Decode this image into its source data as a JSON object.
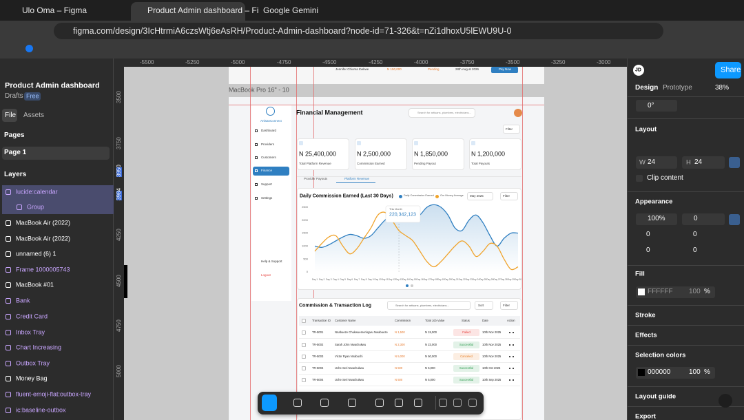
{
  "browser": {
    "tabs": [
      "Ulo Oma – Figma",
      "Product Admin dashboard – Fi",
      "Google Gemini"
    ],
    "url": "figma.com/design/3IcHtrmiA6czsWtj6eAsRH/Product-Admin-dashboard?node-id=71-326&t=nZi1dhoxU5lEWU9U-0"
  },
  "figma": {
    "file_name": "Product Admin dashboard",
    "drafts": "Drafts",
    "plan": "Free",
    "file_tab": "File",
    "assets_tab": "Assets",
    "pages_label": "Pages",
    "page": "Page 1",
    "layers_label": "Layers",
    "layers": [
      {
        "name": "lucide:calendar",
        "color": "#c9a6ff"
      },
      {
        "name": "Group",
        "color": "#c9a6ff"
      },
      {
        "name": "MacBook Air (2022)",
        "color": "#ffffff"
      },
      {
        "name": "MacBook Air (2022)",
        "color": "#ffffff"
      },
      {
        "name": "unnamed (6) 1",
        "color": "#ffffff"
      },
      {
        "name": "Frame 1000005743",
        "color": "#c9a6ff"
      },
      {
        "name": "MacBook #01",
        "color": "#ffffff"
      },
      {
        "name": "Bank",
        "color": "#c9a6ff"
      },
      {
        "name": "Credit Card",
        "color": "#c9a6ff"
      },
      {
        "name": "Inbox Tray",
        "color": "#c9a6ff"
      },
      {
        "name": "Chart Increasing",
        "color": "#c9a6ff"
      },
      {
        "name": "Outbox Tray",
        "color": "#c9a6ff"
      },
      {
        "name": "Money Bag",
        "color": "#ffffff"
      },
      {
        "name": "fluent-emoji-flat:outbox-tray",
        "color": "#c9a6ff"
      },
      {
        "name": "ic:baseline-outbox",
        "color": "#c9a6ff"
      }
    ],
    "ruler_x": [
      -5500,
      -5250,
      -5000,
      -4750,
      -4500,
      -4250,
      -4000,
      -3750,
      -3500,
      -3250,
      -3000
    ],
    "ruler_y": [
      3500,
      3750,
      3950,
      3984,
      4250,
      4500,
      4750,
      5000
    ],
    "frame_label": "MacBook Pro 16\" - 10",
    "right": {
      "avatar": "JD",
      "share": "Share",
      "design": "Design",
      "prototype": "Prototype",
      "zoom": "38%",
      "rotation": "0°",
      "layout": "Layout",
      "w_label": "W",
      "w": "24",
      "h_label": "H",
      "h": "24",
      "clip": "Clip content",
      "appearance": "Appearance",
      "opacity": "100%",
      "radius": "0",
      "corners": [
        "0",
        "0",
        "0",
        "0"
      ],
      "fill": "Fill",
      "fill_hex": "FFFFFF",
      "fill_opacity": "100",
      "fill_pct": "%",
      "stroke": "Stroke",
      "effects": "Effects",
      "selection": "Selection colors",
      "sel_hex": "000000",
      "sel_opacity": "100",
      "sel_pct": "%",
      "layout_guide": "Layout guide",
      "export": "Export"
    }
  },
  "dashboard": {
    "prev_row": [
      "Jennifer Chioma Ibekwe",
      "N 150,000",
      "Pending",
      "28th Aug at 2026",
      "Pay Now"
    ],
    "brand": "ArtisanConnect",
    "nav": [
      "Dashboard",
      "Providers",
      "Customers",
      "Finance",
      "Support",
      "Settings"
    ],
    "help": "Help & Support",
    "logout": "Logout",
    "title": "Financial Management",
    "search": "Search for artisans, plumbers, electricians...",
    "filter": "Filter",
    "cards": [
      {
        "value": "N 25,400,000",
        "label": "Total Platform Revenue"
      },
      {
        "value": "N 2,500,000",
        "label": "Commission Earned"
      },
      {
        "value": "N 1,850,000",
        "label": "Pending Payout"
      },
      {
        "value": "N 1,200,000",
        "label": "Total Payouts"
      }
    ],
    "tabs": [
      "Provider Payouts",
      "Platform Revenue"
    ],
    "chart": {
      "type": "line",
      "title": "Daily Commission Earned (Last 30 Days)",
      "month": "May 2025",
      "filter": "Filter",
      "tooltip_label": "This Month",
      "tooltip_value": "220,342,123",
      "categories": [
        "Day 1",
        "Day 2",
        "Day 3",
        "Day 4",
        "Day 5",
        "Day 6",
        "Day 7",
        "Day 8",
        "Day 9",
        "Day 10",
        "Day 11",
        "Day 12",
        "Day 13",
        "Day 14",
        "Day 15",
        "Day 16",
        "Day 17",
        "Day 18",
        "Day 19",
        "Day 20",
        "Day 21",
        "Day 22",
        "Day 23",
        "Day 24",
        "Day 25",
        "Day 26",
        "Day 27",
        "Day 28",
        "Day 29",
        "Day 30"
      ],
      "ylim": [
        0,
        2500
      ],
      "yticks": [
        0,
        500,
        1000,
        1500,
        2000,
        2500
      ],
      "series": [
        {
          "name": "Daily Commission Earned",
          "color": "#2f7fc1",
          "values": [
            1000,
            950,
            1050,
            1200,
            1350,
            1450,
            1400,
            1300,
            1400,
            1700,
            2000,
            2200,
            2300,
            2150,
            2000,
            2200,
            2500,
            2600,
            2500,
            2200,
            1700,
            1600,
            2000,
            2200,
            1900,
            1400,
            1000,
            1300,
            1500,
            1500
          ]
        },
        {
          "name": "Our Money Average",
          "color": "#f0a32a",
          "values": [
            800,
            1100,
            1350,
            1400,
            1000,
            700,
            900,
            1300,
            1700,
            2200,
            2300,
            2000,
            1600,
            1400,
            1200,
            800,
            400,
            200,
            400,
            700,
            1000,
            1200,
            1000,
            600,
            800,
            1100,
            1000,
            500,
            100,
            200
          ]
        }
      ]
    },
    "table": {
      "title": "Commission & Transaction Log",
      "search": "Search for artisans, plumbers, electricians...",
      "sort": "Sort",
      "filter": "Filter",
      "columns": [
        "Transaction ID",
        "Customer Name",
        "Commission",
        "Total Job Value",
        "Status",
        "Date",
        "Action"
      ],
      "rows": [
        {
          "id": "TR-5001",
          "name": "Nnabueze Chukwuemeriogwu Nwabueze",
          "commission": "N 1,500",
          "total": "N 15,000",
          "status": "Failed",
          "status_color": "#e53935",
          "date": "10th Nov 2025"
        },
        {
          "id": "TR-5002",
          "name": "Sarah John Nwachukwu",
          "commission": "N 2,300",
          "total": "N 23,000",
          "status": "Successful",
          "status_color": "#2e9d4f",
          "date": "10th Nov 2025"
        },
        {
          "id": "TR-5003",
          "name": "Victor Ryan Nnabuchi",
          "commission": "N 5,000",
          "total": "N 50,000",
          "status": "Canceled",
          "status_color": "#e67e22",
          "date": "10th Nov 2025"
        },
        {
          "id": "TR-5004",
          "name": "Uche Seri Nwachukwu",
          "commission": "N 500",
          "total": "N 5,000",
          "status": "Successful",
          "status_color": "#2e9d4f",
          "date": "10th Oct 2025"
        },
        {
          "id": "TR-5004",
          "name": "Uche Seri Nwachukwu",
          "commission": "N 500",
          "total": "N 5,000",
          "status": "Successful",
          "status_color": "#2e9d4f",
          "date": "10th Sep 2025"
        }
      ]
    }
  }
}
